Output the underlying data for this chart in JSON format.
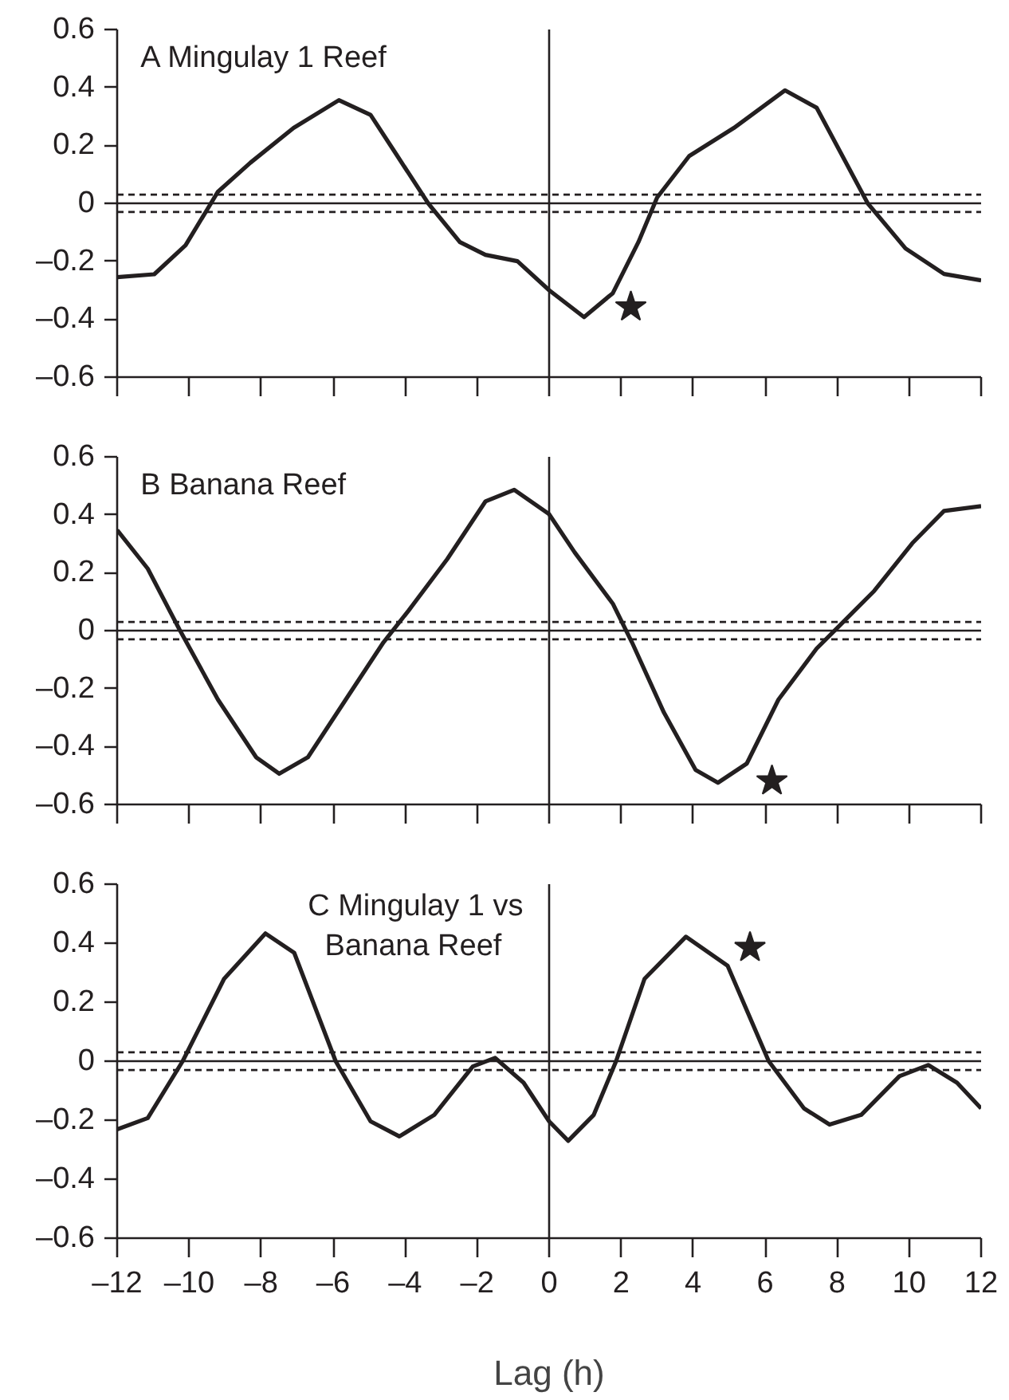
{
  "chart_data": [
    {
      "type": "line",
      "title": "A Mingulay 1 Reef",
      "xlim": [
        -12,
        12
      ],
      "xticks": [
        {
          "value": -12,
          "label": null
        },
        {
          "value": -10,
          "label": null
        },
        {
          "value": -8,
          "label": null
        },
        {
          "value": -6,
          "label": null
        },
        {
          "value": -4,
          "label": null
        },
        {
          "value": -2,
          "label": null
        },
        {
          "value": 0,
          "label": null
        },
        {
          "value": 2,
          "label": null
        },
        {
          "value": 4,
          "label": null
        },
        {
          "value": 6,
          "label": null
        },
        {
          "value": 8,
          "label": null
        },
        {
          "value": 10,
          "label": null
        },
        {
          "value": 12,
          "label": null
        }
      ],
      "ylim": [
        -0.6,
        0.6
      ],
      "yticks": [
        0.6,
        0.4,
        0.2,
        0,
        {
          "value": -0.2,
          "label": "–0.2"
        },
        {
          "value": -0.4,
          "label": "–0.4"
        },
        {
          "value": -0.6,
          "label": "–0.6"
        }
      ],
      "tick_labels": "y",
      "grid": false,
      "series": [
        {
          "color": "#231f20",
          "marker": "none",
          "line_style": "solid",
          "x": [
            -12,
            -10.97,
            -10.1,
            -9.2,
            -8.3,
            -7.1,
            -5.84,
            -4.96,
            -4.25,
            -3.36,
            -2.48,
            -1.77,
            -0.88,
            0,
            0.97,
            1.77,
            2.48,
            3.0,
            3.89,
            5.13,
            6.55,
            7.43,
            8.85,
            9.9,
            10.97,
            12
          ],
          "values": [
            -0.255,
            -0.245,
            -0.145,
            0.04,
            0.14,
            0.26,
            0.356,
            0.305,
            0.17,
            0.0,
            -0.134,
            -0.178,
            -0.2,
            -0.3,
            -0.393,
            -0.31,
            -0.134,
            0.02,
            0.163,
            0.26,
            0.39,
            0.33,
            0.0,
            -0.156,
            -0.244,
            -0.266
          ]
        },
        {
          "type": "scatter",
          "color": "#231f20",
          "marker": "star",
          "x": [
            2.27
          ],
          "values": [
            -0.358
          ]
        }
      ],
      "ref_lines": [
        {
          "axis": "y",
          "value": 0,
          "line_style": "solid",
          "color": "#231f20"
        },
        {
          "axis": "y",
          "value": 0.03,
          "line_style": "dashed",
          "color": "#231f20"
        },
        {
          "axis": "y",
          "value": -0.03,
          "line_style": "dashed",
          "color": "#231f20"
        },
        {
          "axis": "x",
          "value": 0,
          "line_style": "solid",
          "color": "#231f20"
        }
      ]
    },
    {
      "type": "line",
      "title": "B Banana Reef",
      "xlim": [
        -12,
        12
      ],
      "xticks": [
        {
          "value": -12,
          "label": null
        },
        {
          "value": -10,
          "label": null
        },
        {
          "value": -8,
          "label": null
        },
        {
          "value": -6,
          "label": null
        },
        {
          "value": -4,
          "label": null
        },
        {
          "value": -2,
          "label": null
        },
        {
          "value": 0,
          "label": null
        },
        {
          "value": 2,
          "label": null
        },
        {
          "value": 4,
          "label": null
        },
        {
          "value": 6,
          "label": null
        },
        {
          "value": 8,
          "label": null
        },
        {
          "value": 10,
          "label": null
        },
        {
          "value": 12,
          "label": null
        }
      ],
      "ylim": [
        -0.6,
        0.6
      ],
      "yticks": [
        0.6,
        0.4,
        0.2,
        0,
        {
          "value": -0.2,
          "label": "–0.2"
        },
        {
          "value": -0.4,
          "label": "–0.4"
        },
        {
          "value": -0.6,
          "label": "–0.6"
        }
      ],
      "tick_labels": "y",
      "grid": false,
      "series": [
        {
          "color": "#231f20",
          "marker": "none",
          "line_style": "solid",
          "x": [
            -12,
            -11.15,
            -10.27,
            -9.2,
            -8.14,
            -7.5,
            -6.7,
            -5.65,
            -4.6,
            -3.9,
            -2.83,
            -1.77,
            -0.97,
            0,
            0.71,
            1.77,
            2.3,
            3.19,
            4.07,
            4.69,
            5.49,
            6.37,
            7.43,
            7.96,
            9.03,
            10.09,
            10.97,
            12
          ],
          "values": [
            0.347,
            0.214,
            0.004,
            -0.238,
            -0.437,
            -0.494,
            -0.437,
            -0.238,
            -0.04,
            0.07,
            0.247,
            0.446,
            0.486,
            0.402,
            0.27,
            0.093,
            -0.04,
            -0.283,
            -0.481,
            -0.525,
            -0.459,
            -0.238,
            -0.062,
            0.004,
            0.137,
            0.302,
            0.413,
            0.43
          ]
        },
        {
          "type": "scatter",
          "color": "#231f20",
          "marker": "star",
          "x": [
            6.19
          ],
          "values": [
            -0.519
          ]
        }
      ],
      "ref_lines": [
        {
          "axis": "y",
          "value": 0,
          "line_style": "solid",
          "color": "#231f20"
        },
        {
          "axis": "y",
          "value": 0.03,
          "line_style": "dashed",
          "color": "#231f20"
        },
        {
          "axis": "y",
          "value": -0.03,
          "line_style": "dashed",
          "color": "#231f20"
        },
        {
          "axis": "x",
          "value": 0,
          "line_style": "solid",
          "color": "#231f20"
        }
      ]
    },
    {
      "type": "line",
      "title": "C Mingulay 1 vs\nBanana Reef",
      "xlabel": "Lag (h)",
      "xlim": [
        -12,
        12
      ],
      "xticks": [
        {
          "value": -12,
          "label": "–12"
        },
        {
          "value": -10,
          "label": "–10"
        },
        {
          "value": -8,
          "label": "–8"
        },
        {
          "value": -6,
          "label": "–6"
        },
        {
          "value": -4,
          "label": "–4"
        },
        {
          "value": -2,
          "label": "–2"
        },
        0,
        2,
        4,
        6,
        8,
        10,
        12
      ],
      "ylim": [
        -0.6,
        0.6
      ],
      "yticks": [
        0.6,
        0.4,
        0.2,
        0,
        {
          "value": -0.2,
          "label": "–0.2"
        },
        {
          "value": -0.4,
          "label": "–0.4"
        },
        {
          "value": -0.6,
          "label": "–0.6"
        }
      ],
      "grid": false,
      "series": [
        {
          "color": "#231f20",
          "marker": "none",
          "line_style": "solid",
          "x": [
            -12,
            -11.15,
            -10.18,
            -9.03,
            -7.88,
            -7.08,
            -5.93,
            -4.96,
            -4.16,
            -3.19,
            -2.12,
            -1.5,
            -0.71,
            0,
            0.53,
            1.24,
            1.86,
            2.65,
            3.8,
            4.96,
            6.1,
            7.08,
            7.79,
            8.67,
            9.73,
            10.53,
            11.33,
            12
          ],
          "values": [
            -0.231,
            -0.193,
            0,
            0.279,
            0.433,
            0.367,
            0,
            -0.204,
            -0.255,
            -0.182,
            -0.018,
            0.011,
            -0.073,
            -0.204,
            -0.27,
            -0.182,
            0,
            0.279,
            0.422,
            0.323,
            0,
            -0.16,
            -0.215,
            -0.182,
            -0.051,
            -0.013,
            -0.073,
            -0.16
          ]
        },
        {
          "type": "scatter",
          "color": "#231f20",
          "marker": "star",
          "x": [
            5.58
          ],
          "values": [
            0.385
          ]
        }
      ],
      "ref_lines": [
        {
          "axis": "y",
          "value": 0,
          "line_style": "solid",
          "color": "#231f20"
        },
        {
          "axis": "y",
          "value": 0.03,
          "line_style": "dashed",
          "color": "#231f20"
        },
        {
          "axis": "y",
          "value": -0.03,
          "line_style": "dashed",
          "color": "#231f20"
        },
        {
          "axis": "x",
          "value": 0,
          "line_style": "solid",
          "color": "#231f20"
        }
      ]
    }
  ]
}
